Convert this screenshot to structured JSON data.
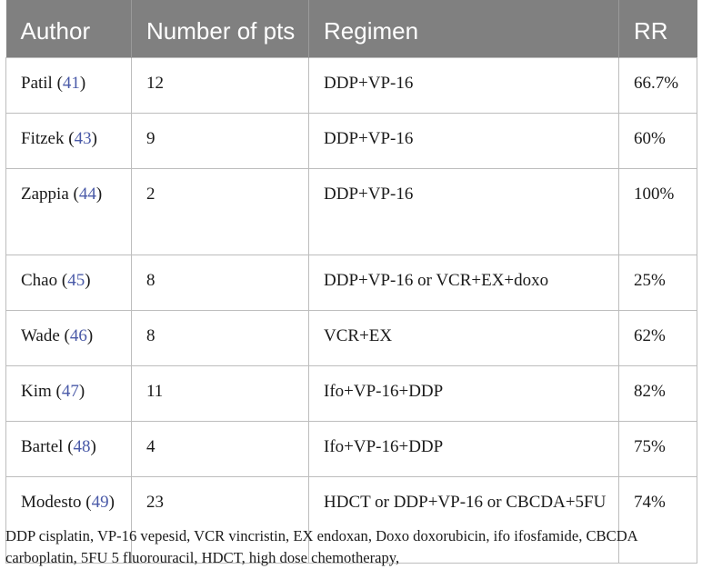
{
  "table": {
    "headers": [
      "Author",
      "Number of pts",
      "Regimen",
      "RR"
    ],
    "rows": [
      {
        "author": "Patil",
        "ref": "41",
        "pts": "12",
        "regimen": "DDP+VP-16",
        "rr": "66.7%"
      },
      {
        "author": "Fitzek",
        "ref": "43",
        "pts": "9",
        "regimen": "DDP+VP-16",
        "rr": "60%"
      },
      {
        "author": "Zappia",
        "ref": "44",
        "pts": "2",
        "regimen": "DDP+VP-16",
        "rr": "100%"
      },
      {
        "author": "Chao",
        "ref": "45",
        "pts": "8",
        "regimen": "DDP+VP-16 or VCR+EX+doxo",
        "rr": "25%"
      },
      {
        "author": "Wade",
        "ref": "46",
        "pts": "8",
        "regimen": "VCR+EX",
        "rr": "62%"
      },
      {
        "author": "Kim",
        "ref": "47",
        "pts": "11",
        "regimen": "Ifo+VP-16+DDP",
        "rr": "82%"
      },
      {
        "author": "Bartel",
        "ref": "48",
        "pts": "4",
        "regimen": "Ifo+VP-16+DDP",
        "rr": "75%"
      },
      {
        "author": "Modesto",
        "ref": "49",
        "pts": "23",
        "regimen": "HDCT or DDP+VP-16 or CBCDA+5FU",
        "rr": "74%"
      }
    ]
  },
  "footnote": "DDP cisplatin, VP-16 vepesid, VCR vincristin, EX endoxan, Doxo doxorubicin, ifo ifosfamide, CBCDA carboplatin, 5FU 5 fluorouracil, HDCT, high dose chemotherapy,"
}
